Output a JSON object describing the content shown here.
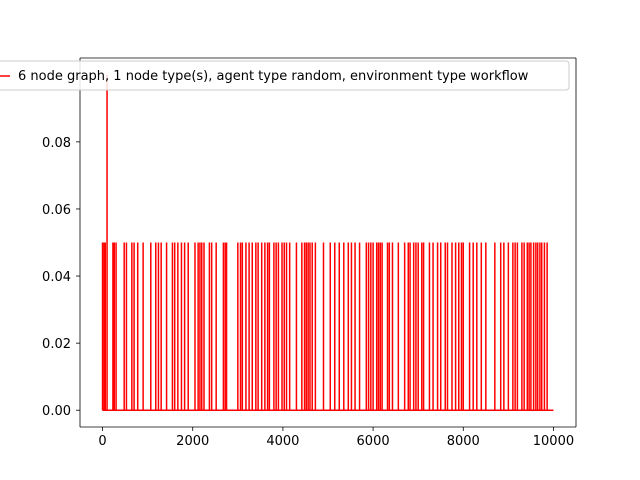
{
  "chart_data": {
    "type": "line",
    "title": "",
    "xlabel": "",
    "ylabel": "",
    "xlim": [
      -500,
      10500
    ],
    "ylim": [
      -0.005,
      0.105
    ],
    "xticks": [
      0,
      2000,
      4000,
      6000,
      8000,
      10000
    ],
    "xtick_labels": [
      "0",
      "2000",
      "4000",
      "6000",
      "8000",
      "10000"
    ],
    "yticks": [
      0.0,
      0.02,
      0.04,
      0.06,
      0.08
    ],
    "ytick_labels": [
      "0.00",
      "0.02",
      "0.04",
      "0.06",
      "0.08"
    ],
    "grid": false,
    "legend_position": "top",
    "series": [
      {
        "name": "6 node graph, 1 node type(s), agent type random, environment type workflow",
        "color": "#ff0000",
        "baseline": 0.0,
        "x_range": [
          0,
          10000
        ],
        "peak": {
          "x": 100,
          "y": 0.1
        },
        "spike_value": 0.05,
        "spike_x": [
          0,
          30,
          60,
          230,
          260,
          300,
          480,
          530,
          650,
          700,
          780,
          900,
          1070,
          1180,
          1240,
          1300,
          1420,
          1550,
          1600,
          1670,
          1750,
          1820,
          1900,
          2050,
          2120,
          2160,
          2200,
          2250,
          2370,
          2420,
          2520,
          2680,
          2720,
          2750,
          3000,
          3060,
          3100,
          3180,
          3250,
          3320,
          3400,
          3450,
          3530,
          3600,
          3660,
          3700,
          3800,
          3850,
          3900,
          3980,
          4030,
          4080,
          4150,
          4300,
          4420,
          4480,
          4520,
          4560,
          4600,
          4650,
          4720,
          4900,
          5050,
          5150,
          5250,
          5350,
          5450,
          5520,
          5600,
          5700,
          5850,
          5900,
          5950,
          6000,
          6080,
          6120,
          6160,
          6200,
          6320,
          6360,
          6430,
          6560,
          6700,
          6780,
          6820,
          6900,
          6950,
          7000,
          7080,
          7120,
          7250,
          7330,
          7430,
          7500,
          7600,
          7650,
          7750,
          7830,
          7900,
          7960,
          8000,
          8140,
          8220,
          8300,
          8400,
          8500,
          8700,
          8830,
          8900,
          9000,
          9100,
          9150,
          9200,
          9300,
          9350,
          9420,
          9460,
          9500,
          9560,
          9610,
          9650,
          9700,
          9740,
          9800,
          9860
        ]
      }
    ]
  }
}
